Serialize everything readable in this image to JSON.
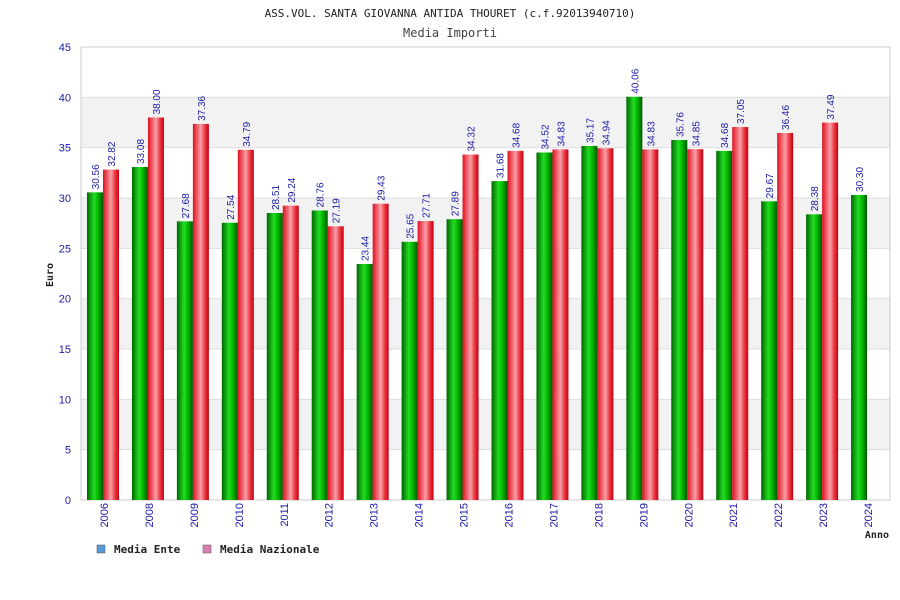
{
  "chart_data": {
    "type": "bar",
    "title": "ASS.VOL. SANTA GIOVANNA ANTIDA THOURET (c.f.92013940710)",
    "subtitle": "Media Importi",
    "xlabel": "Anno",
    "ylabel": "Euro",
    "ylim": [
      0,
      45
    ],
    "yticks": [
      "0",
      "5",
      "10",
      "15",
      "20",
      "25",
      "30",
      "35",
      "40",
      "45"
    ],
    "grid": true,
    "legend_position": "bottom-left",
    "categories": [
      "2006",
      "2008",
      "2009",
      "2010",
      "2011",
      "2012",
      "2013",
      "2014",
      "2015",
      "2016",
      "2017",
      "2018",
      "2019",
      "2020",
      "2021",
      "2022",
      "2023",
      "2024"
    ],
    "series": [
      {
        "name": "Media Ente",
        "color": "#00b400",
        "legend_color": "#5b9bd5",
        "values": [
          30.56,
          33.08,
          27.68,
          27.54,
          28.51,
          28.76,
          23.44,
          25.65,
          27.89,
          31.68,
          34.52,
          35.17,
          40.06,
          35.76,
          34.68,
          29.67,
          28.38,
          30.3
        ],
        "labels": [
          "30.56",
          "33.08",
          "27.68",
          "27.54",
          "28.51",
          "28.76",
          "23.44",
          "25.65",
          "27.89",
          "31.68",
          "34.52",
          "35.17",
          "40.06",
          "35.76",
          "34.68",
          "29.67",
          "28.38",
          "30.30"
        ]
      },
      {
        "name": "Media Nazionale",
        "color": "#e8202a",
        "legend_color": "#d77fb2",
        "values": [
          32.82,
          38.0,
          37.36,
          34.79,
          29.24,
          27.19,
          29.43,
          27.71,
          34.32,
          34.68,
          34.83,
          34.94,
          34.83,
          34.85,
          37.05,
          36.46,
          37.49,
          null
        ],
        "labels": [
          "32.82",
          "38.00",
          "37.36",
          "34.79",
          "29.24",
          "27.19",
          "29.43",
          "27.71",
          "34.32",
          "34.68",
          "34.83",
          "34.94",
          "34.83",
          "34.85",
          "37.05",
          "36.46",
          "37.49",
          null
        ]
      }
    ]
  }
}
